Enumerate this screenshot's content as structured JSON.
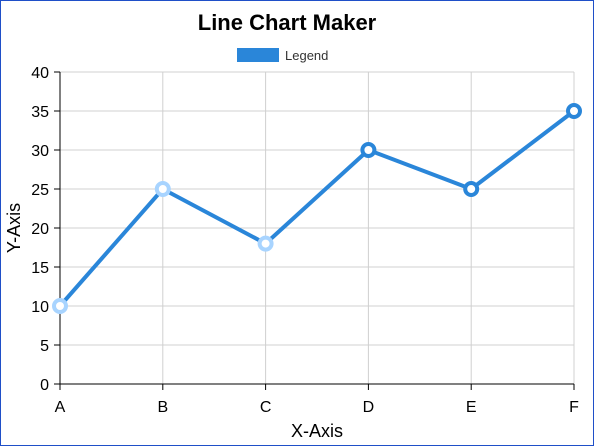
{
  "chart_data": {
    "type": "line",
    "title": "Line Chart Maker",
    "xlabel": "X-Axis",
    "ylabel": "Y-Axis",
    "categories": [
      "A",
      "B",
      "C",
      "D",
      "E",
      "F"
    ],
    "series": [
      {
        "name": "Legend",
        "values": [
          10,
          25,
          18,
          30,
          25,
          35
        ],
        "color": "#2a86d9"
      }
    ],
    "ylim": [
      0,
      40
    ],
    "yticks": [
      0,
      5,
      10,
      15,
      20,
      25,
      30,
      35,
      40
    ],
    "grid": true,
    "legend_position": "top-center",
    "colors": {
      "frame_border": "#1f4fc8",
      "grid": "#d0d0d0",
      "axis": "#000000",
      "marker_fill_light": "#a8d4ff",
      "marker_fill_dark": "#ffffff"
    }
  }
}
